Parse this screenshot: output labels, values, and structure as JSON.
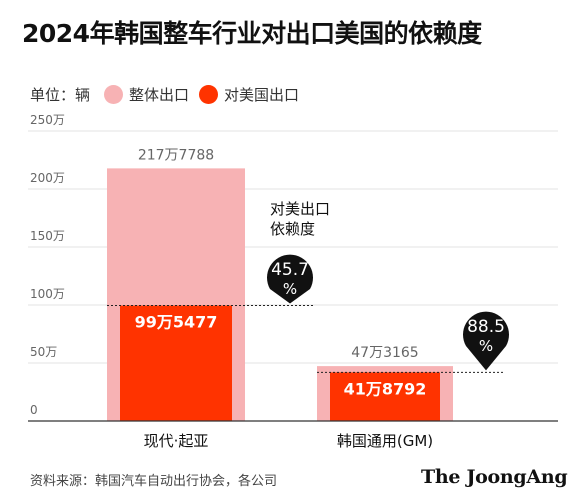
{
  "title": "2024年韩国整车行业对出口美国的依赖度",
  "legend": {
    "unit": "单位：辆",
    "items": [
      {
        "label": "整体出口",
        "color": "#f7b2b4"
      },
      {
        "label": "对美国出口",
        "color": "#ff3300"
      }
    ]
  },
  "bubble_title": [
    "对美出口",
    "依赖度"
  ],
  "source": "资料来源：韩国汽车自动出行协会，各公司",
  "brand": "The JoongAng",
  "chart_data": {
    "type": "bar",
    "ylim": [
      0,
      2500000
    ],
    "ytick_values": [
      0,
      500000,
      1000000,
      1500000,
      2000000,
      2500000
    ],
    "ytick_labels": [
      "0",
      "50万",
      "100万",
      "150万",
      "200万",
      "250万"
    ],
    "categories": [
      "现代·起亚",
      "韩国通用(GM)"
    ],
    "series": [
      {
        "name": "整体出口",
        "values": [
          2177788,
          473165
        ],
        "labels": [
          "217万7788",
          "47万3165"
        ],
        "color": "#f7b2b4"
      },
      {
        "name": "对美国出口",
        "values": [
          995477,
          418792
        ],
        "labels": [
          "99万5477",
          "41万8792"
        ],
        "color": "#ff3300"
      }
    ],
    "dependency": [
      {
        "value": 45.7,
        "label": "45.7%"
      },
      {
        "value": 88.5,
        "label": "88.5%"
      }
    ]
  }
}
